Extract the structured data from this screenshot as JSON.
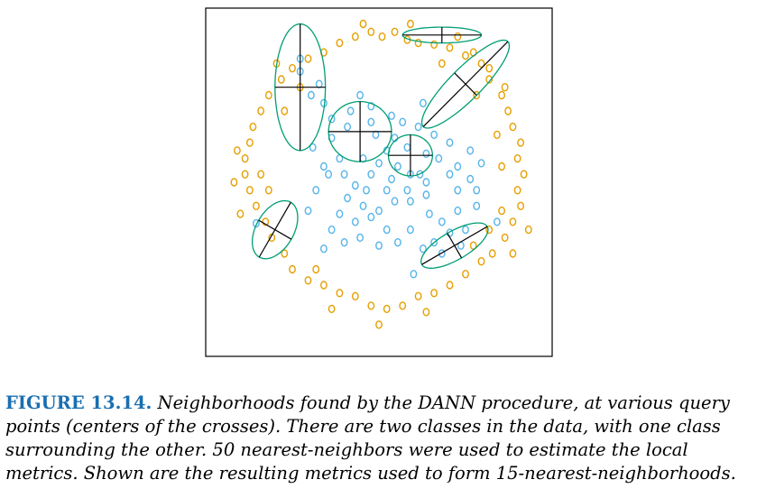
{
  "caption": {
    "label": "FIGURE 13.14.",
    "text": "Neighborhoods found by the DANN procedure, at various query points (centers of the crosses). There are two classes in the data, with one class surrounding the other. 50 nearest-neighbors were used to estimate the local metrics. Shown are the resulting metrics used to form 15-nearest-neighborhoods."
  },
  "colors": {
    "inner_class": "#56b4e9",
    "outer_class": "#e69f00",
    "ellipse": "#009e73",
    "axes": "#000000"
  },
  "chart_data": {
    "type": "scatter",
    "title": "",
    "xlabel": "",
    "ylabel": "",
    "xlim": [
      -1.1,
      1.1
    ],
    "ylim": [
      -1.1,
      1.1
    ],
    "grid": false,
    "ticks": false,
    "series": [
      {
        "color": "#56b4e9",
        "marker": "open-circle",
        "points": [
          [
            -0.78,
            -0.26
          ],
          [
            0.75,
            -0.25
          ],
          [
            0.22,
            -0.58
          ],
          [
            -0.5,
            0.78
          ],
          [
            -0.5,
            0.7
          ],
          [
            -0.38,
            0.62
          ],
          [
            -0.35,
            0.5
          ],
          [
            -0.43,
            0.55
          ],
          [
            -0.12,
            0.55
          ],
          [
            -0.05,
            0.48
          ],
          [
            0.08,
            0.42
          ],
          [
            0.1,
            0.28
          ],
          [
            -0.2,
            0.35
          ],
          [
            -0.3,
            0.28
          ],
          [
            0.05,
            0.2
          ],
          [
            -0.1,
            0.15
          ],
          [
            -0.25,
            0.15
          ],
          [
            0.18,
            0.22
          ],
          [
            0.3,
            0.18
          ],
          [
            0.38,
            0.15
          ],
          [
            0.26,
            0.05
          ],
          [
            0.45,
            0.05
          ],
          [
            0.5,
            0.1
          ],
          [
            0.58,
            0.02
          ],
          [
            0.62,
            -0.05
          ],
          [
            0.05,
            -0.05
          ],
          [
            -0.05,
            0.05
          ],
          [
            -0.15,
            -0.02
          ],
          [
            -0.22,
            0.05
          ],
          [
            -0.35,
            0.1
          ],
          [
            -0.4,
            -0.05
          ],
          [
            -0.2,
            -0.1
          ],
          [
            -0.1,
            -0.15
          ],
          [
            0.0,
            -0.18
          ],
          [
            0.1,
            -0.12
          ],
          [
            0.2,
            -0.12
          ],
          [
            0.3,
            -0.08
          ],
          [
            0.32,
            -0.2
          ],
          [
            0.4,
            -0.25
          ],
          [
            0.5,
            -0.18
          ],
          [
            0.45,
            -0.32
          ],
          [
            0.05,
            -0.3
          ],
          [
            -0.05,
            -0.22
          ],
          [
            -0.15,
            -0.25
          ],
          [
            -0.25,
            -0.2
          ],
          [
            -0.3,
            -0.3
          ],
          [
            -0.22,
            -0.38
          ],
          [
            -0.12,
            -0.35
          ],
          [
            0.0,
            -0.4
          ],
          [
            0.12,
            -0.38
          ],
          [
            0.2,
            -0.3
          ],
          [
            0.28,
            -0.42
          ],
          [
            0.35,
            -0.38
          ],
          [
            0.52,
            -0.4
          ],
          [
            0.55,
            -0.3
          ],
          [
            -0.02,
            0.3
          ],
          [
            0.12,
            0.1
          ],
          [
            0.2,
            0.05
          ],
          [
            0.3,
            0.0
          ],
          [
            0.35,
            0.3
          ],
          [
            0.25,
            0.35
          ],
          [
            0.15,
            0.38
          ],
          [
            -0.05,
            0.38
          ],
          [
            -0.42,
            0.22
          ],
          [
            -0.45,
            -0.18
          ],
          [
            -0.35,
            -0.42
          ],
          [
            0.4,
            -0.45
          ],
          [
            0.62,
            -0.15
          ],
          [
            0.65,
            0.12
          ],
          [
            0.58,
            0.2
          ],
          [
            0.0,
            0.12
          ],
          [
            -0.08,
            -0.05
          ],
          [
            0.08,
            0.02
          ],
          [
            0.18,
            -0.05
          ],
          [
            -0.3,
            0.4
          ],
          [
            0.45,
            0.25
          ],
          [
            -0.18,
            0.45
          ],
          [
            0.28,
            0.5
          ],
          [
            -0.32,
            0.05
          ],
          [
            0.5,
            -0.05
          ]
        ]
      },
      {
        "color": "#e69f00",
        "marker": "open-circle",
        "points": [
          [
            -0.05,
            0.95
          ],
          [
            0.02,
            0.92
          ],
          [
            0.1,
            0.95
          ],
          [
            0.18,
            0.9
          ],
          [
            0.25,
            0.88
          ],
          [
            0.35,
            0.87
          ],
          [
            0.45,
            0.85
          ],
          [
            0.55,
            0.8
          ],
          [
            0.65,
            0.75
          ],
          [
            0.7,
            0.65
          ],
          [
            0.78,
            0.55
          ],
          [
            0.82,
            0.45
          ],
          [
            0.85,
            0.35
          ],
          [
            0.9,
            0.25
          ],
          [
            0.88,
            0.15
          ],
          [
            0.92,
            0.05
          ],
          [
            0.88,
            -0.05
          ],
          [
            0.9,
            -0.15
          ],
          [
            0.85,
            -0.25
          ],
          [
            0.8,
            -0.35
          ],
          [
            0.72,
            -0.45
          ],
          [
            0.65,
            -0.5
          ],
          [
            0.55,
            -0.58
          ],
          [
            0.45,
            -0.65
          ],
          [
            0.35,
            -0.7
          ],
          [
            0.25,
            -0.72
          ],
          [
            0.15,
            -0.78
          ],
          [
            0.05,
            -0.8
          ],
          [
            -0.05,
            -0.78
          ],
          [
            -0.15,
            -0.72
          ],
          [
            -0.25,
            -0.7
          ],
          [
            -0.35,
            -0.65
          ],
          [
            -0.45,
            -0.62
          ],
          [
            -0.55,
            -0.55
          ],
          [
            -0.6,
            -0.45
          ],
          [
            -0.68,
            -0.35
          ],
          [
            -0.72,
            -0.25
          ],
          [
            -0.78,
            -0.15
          ],
          [
            -0.82,
            -0.05
          ],
          [
            -0.85,
            0.05
          ],
          [
            -0.85,
            0.15
          ],
          [
            -0.82,
            0.25
          ],
          [
            -0.8,
            0.35
          ],
          [
            -0.75,
            0.45
          ],
          [
            -0.7,
            0.55
          ],
          [
            -0.62,
            0.65
          ],
          [
            -0.55,
            0.72
          ],
          [
            -0.45,
            0.78
          ],
          [
            -0.35,
            0.82
          ],
          [
            -0.25,
            0.88
          ],
          [
            -0.15,
            0.92
          ],
          [
            0.6,
            0.82
          ],
          [
            0.7,
            0.72
          ],
          [
            0.8,
            0.6
          ],
          [
            0.95,
            -0.3
          ],
          [
            0.85,
            -0.45
          ],
          [
            -0.9,
            0.2
          ],
          [
            -0.92,
            0.0
          ],
          [
            -0.88,
            -0.2
          ],
          [
            -0.3,
            -0.8
          ],
          [
            0.0,
            -0.9
          ],
          [
            0.3,
            -0.82
          ],
          [
            -0.65,
            0.75
          ],
          [
            0.5,
            0.92
          ],
          [
            -0.1,
            1.0
          ],
          [
            0.2,
            1.0
          ],
          [
            0.75,
            0.3
          ],
          [
            0.78,
            0.1
          ],
          [
            -0.75,
            0.05
          ],
          [
            -0.7,
            -0.05
          ],
          [
            0.62,
            0.55
          ],
          [
            -0.5,
            0.6
          ],
          [
            0.4,
            0.75
          ],
          [
            -0.4,
            -0.55
          ],
          [
            0.6,
            -0.4
          ],
          [
            0.7,
            -0.3
          ],
          [
            0.78,
            -0.18
          ],
          [
            -0.6,
            0.45
          ]
        ]
      }
    ],
    "neighborhoods": [
      {
        "cx": -0.5,
        "cy": 0.6,
        "a": 0.4,
        "b": 0.16,
        "angle": 90
      },
      {
        "cx": 0.55,
        "cy": 0.62,
        "a": 0.38,
        "b": 0.1,
        "angle": 45
      },
      {
        "cx": 0.4,
        "cy": 0.93,
        "a": 0.25,
        "b": 0.05,
        "angle": 0
      },
      {
        "cx": -0.12,
        "cy": 0.32,
        "a": 0.2,
        "b": 0.19,
        "angle": 0
      },
      {
        "cx": 0.2,
        "cy": 0.17,
        "a": 0.14,
        "b": 0.13,
        "angle": 0
      },
      {
        "cx": -0.66,
        "cy": -0.3,
        "a": 0.2,
        "b": 0.12,
        "angle": 60
      },
      {
        "cx": 0.48,
        "cy": -0.4,
        "a": 0.24,
        "b": 0.09,
        "angle": 30
      }
    ]
  }
}
